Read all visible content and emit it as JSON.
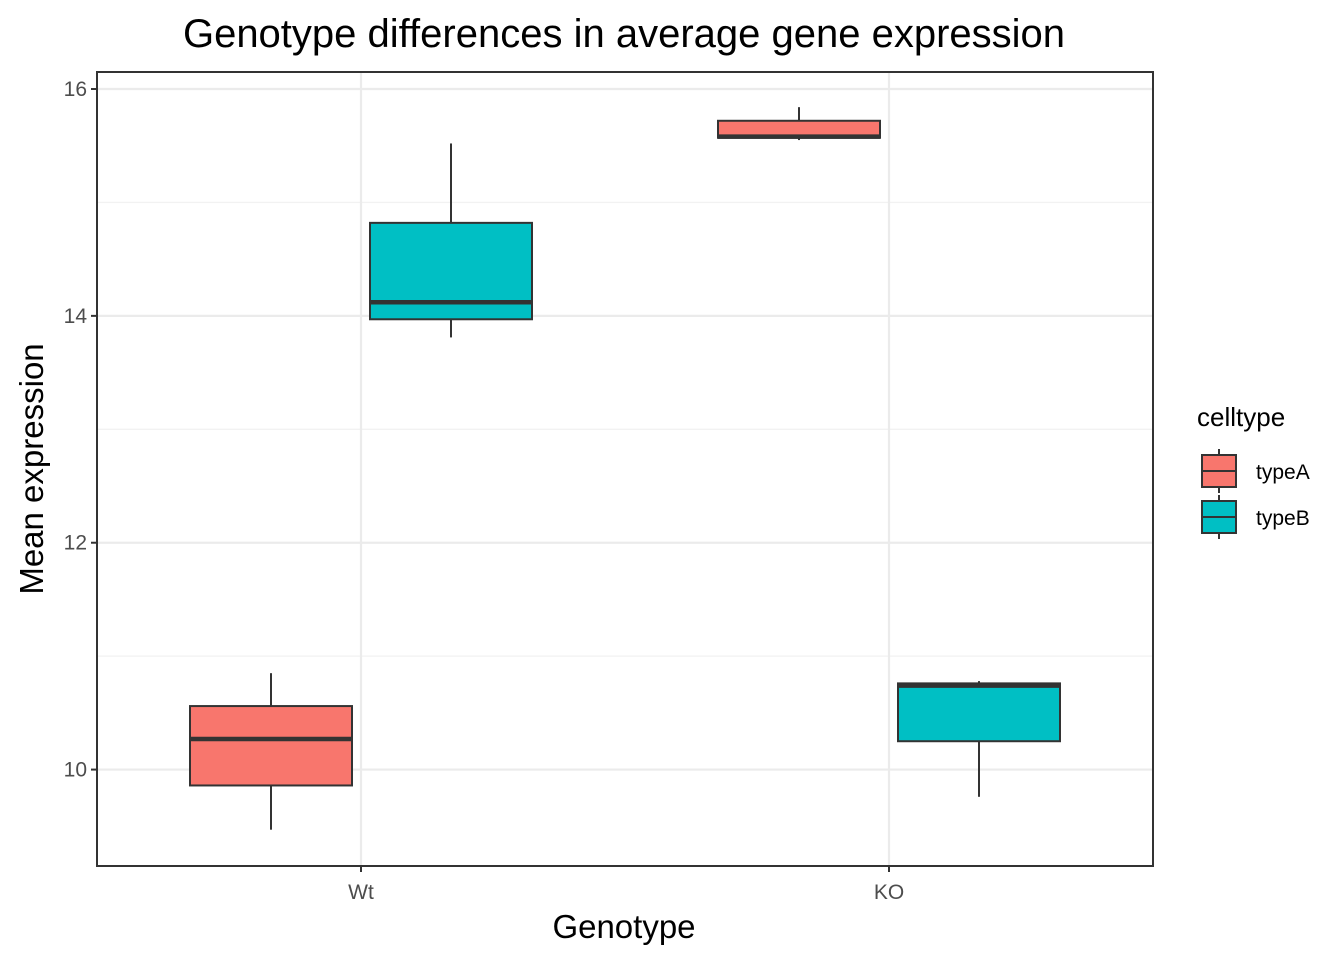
{
  "chart_data": {
    "type": "boxplot",
    "title": "Genotype differences in average gene expression",
    "xlabel": "Genotype",
    "ylabel": "Mean expression",
    "categories": [
      "Wt",
      "KO"
    ],
    "ylim": [
      9.15,
      16.15
    ],
    "yticks": [
      10,
      12,
      14,
      16
    ],
    "grid": true,
    "legend": {
      "title": "celltype",
      "position": "right",
      "entries": [
        {
          "name": "typeA",
          "color": "#f8766d"
        },
        {
          "name": "typeB",
          "color": "#00bfc4"
        }
      ]
    },
    "series": [
      {
        "name": "typeA",
        "color": "#f8766d",
        "boxes": [
          {
            "category": "Wt",
            "min": 9.47,
            "q1": 9.86,
            "median": 10.27,
            "q3": 10.56,
            "max": 10.85
          },
          {
            "category": "KO",
            "min": 15.55,
            "q1": 15.57,
            "median": 15.58,
            "q3": 15.72,
            "max": 15.84
          }
        ]
      },
      {
        "name": "typeB",
        "color": "#00bfc4",
        "boxes": [
          {
            "category": "Wt",
            "min": 13.81,
            "q1": 13.97,
            "median": 14.12,
            "q3": 14.82,
            "max": 15.52
          },
          {
            "category": "KO",
            "min": 9.76,
            "q1": 10.25,
            "median": 10.74,
            "q3": 10.76,
            "max": 10.78
          }
        ]
      }
    ]
  }
}
